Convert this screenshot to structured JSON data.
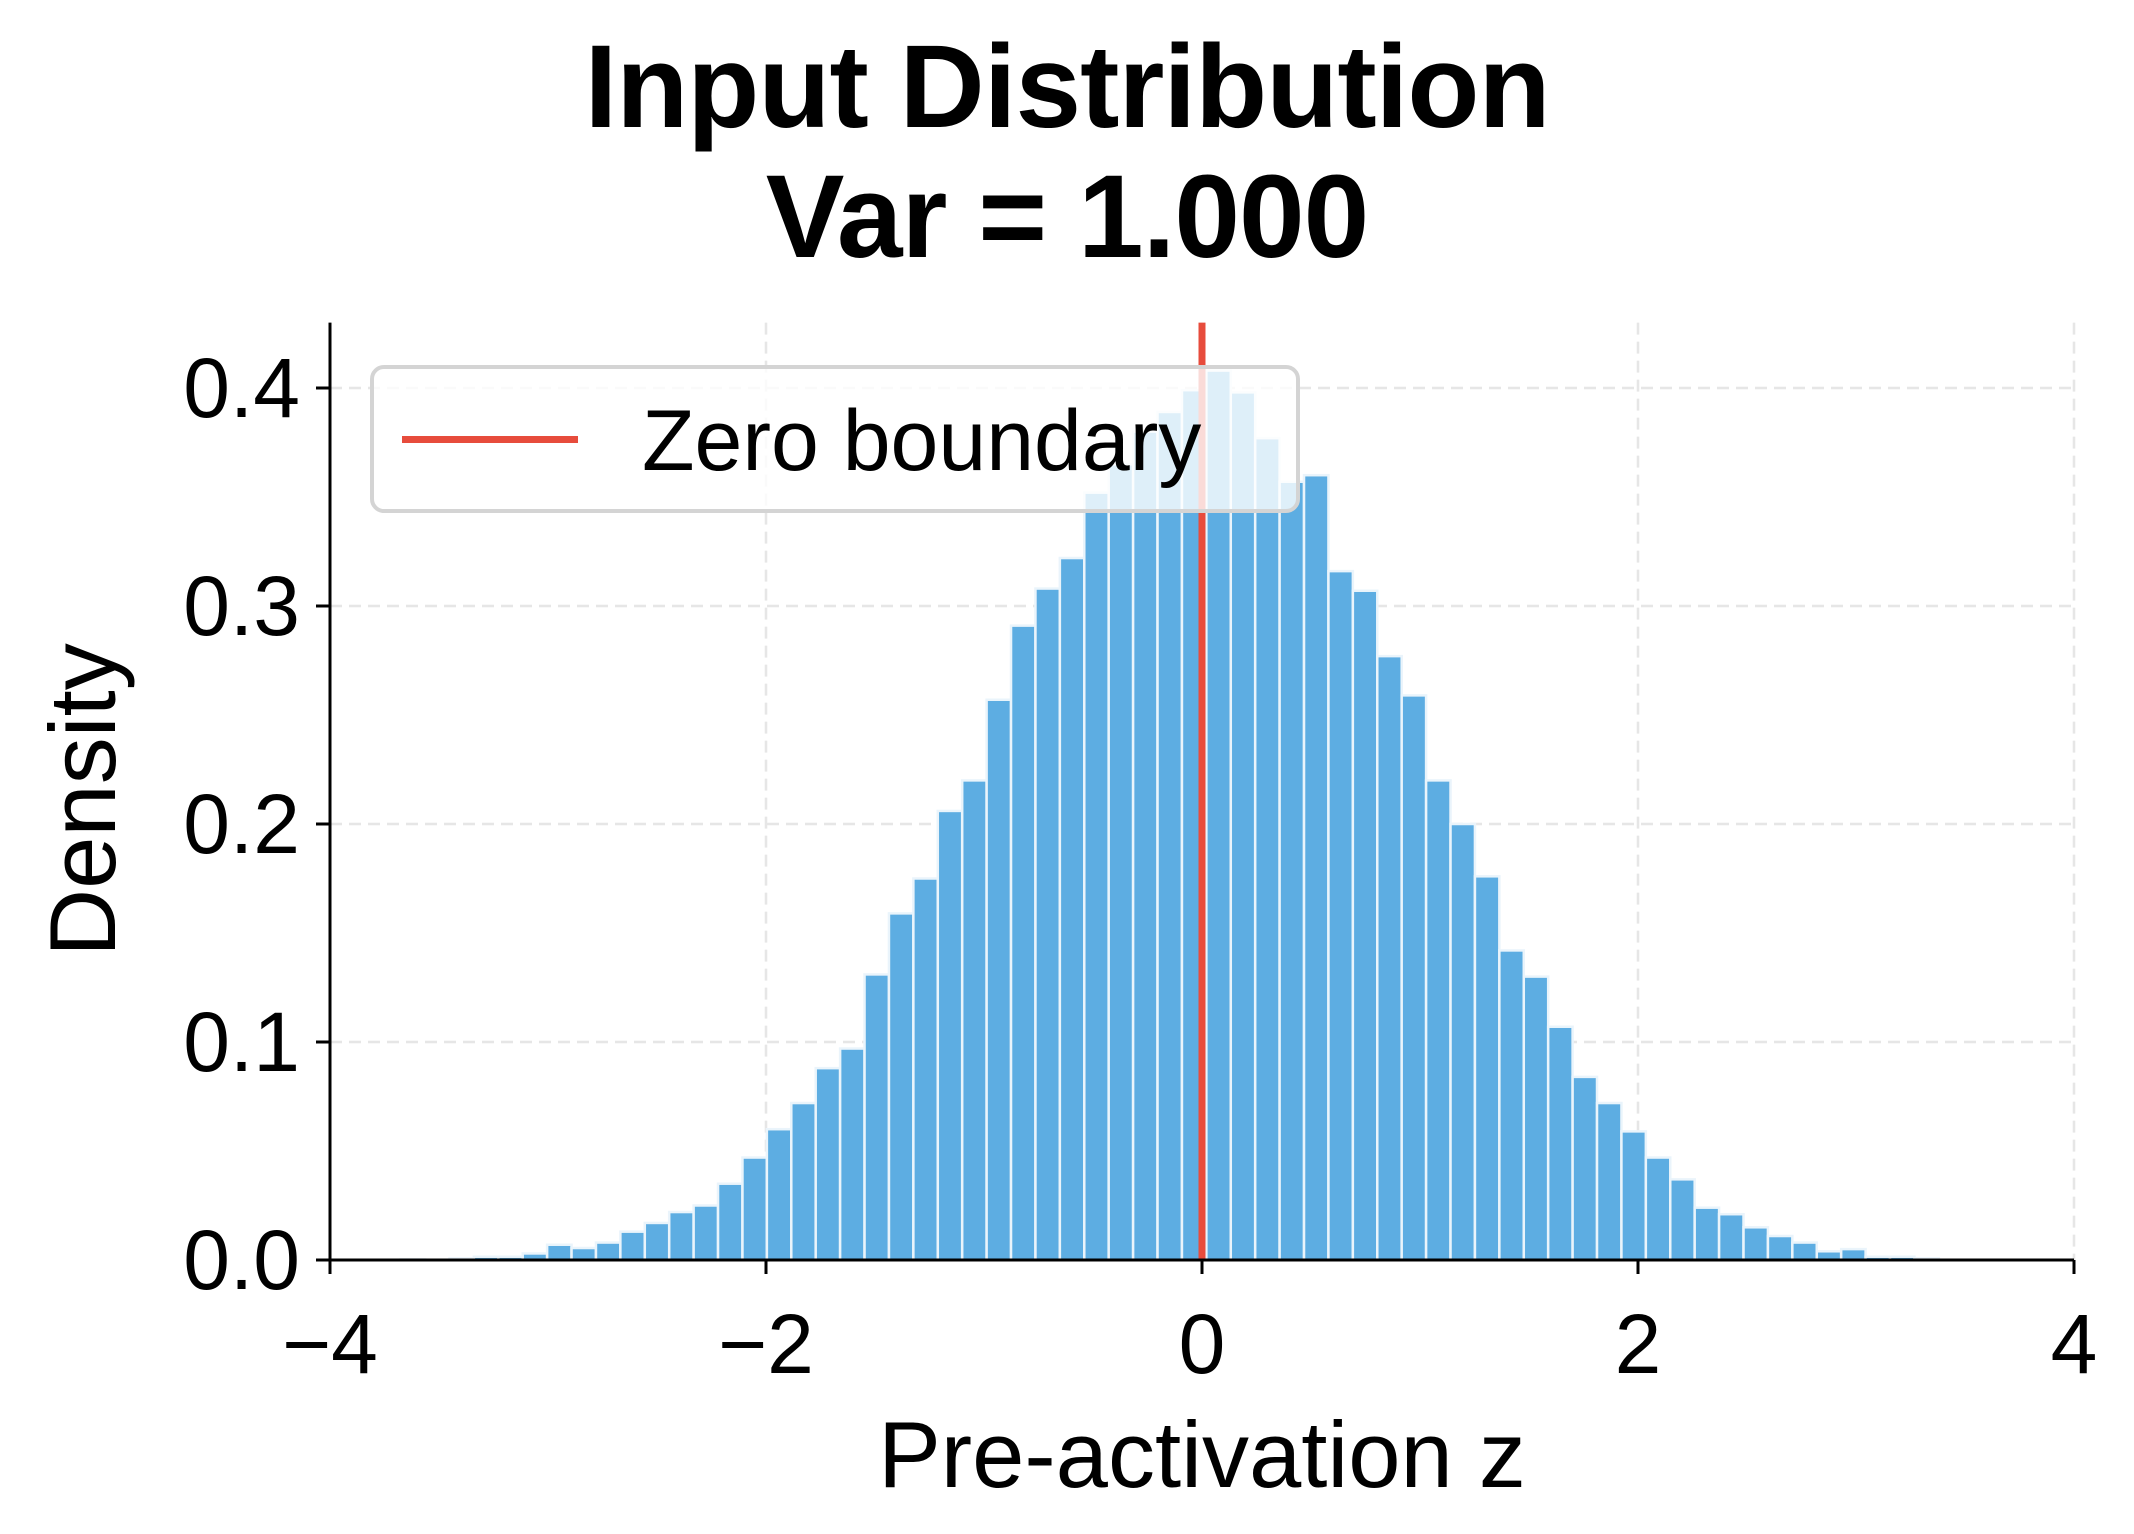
{
  "title": {
    "line1": "Input Distribution",
    "line2": "Var = 1.000"
  },
  "axes": {
    "xlabel": "Pre-activation z",
    "ylabel": "Density",
    "xticks": [
      {
        "value": -4,
        "label": "−4"
      },
      {
        "value": -2,
        "label": "−2"
      },
      {
        "value": 0,
        "label": "0"
      },
      {
        "value": 2,
        "label": "2"
      },
      {
        "value": 4,
        "label": "4"
      }
    ],
    "yticks": [
      {
        "value": 0.0,
        "label": "0.0"
      },
      {
        "value": 0.1,
        "label": "0.1"
      },
      {
        "value": 0.2,
        "label": "0.2"
      },
      {
        "value": 0.3,
        "label": "0.3"
      },
      {
        "value": 0.4,
        "label": "0.4"
      }
    ]
  },
  "legend": {
    "items": [
      {
        "label": "Zero boundary",
        "color": "#E74C3C"
      }
    ]
  },
  "colors": {
    "bar": "#5DADE2",
    "bar_edge": "#EAF4FB",
    "zero_line": "#E74C3C",
    "grid": "#E6E6E6",
    "axis": "#000000"
  },
  "chart_data": {
    "type": "bar",
    "title": "Input Distribution\nVar = 1.000",
    "xlabel": "Pre-activation z",
    "ylabel": "Density",
    "xlim": [
      -4,
      4
    ],
    "ylim": [
      0,
      0.43
    ],
    "grid": true,
    "grid_style": "dashed",
    "legend_position": "upper left",
    "bin_width": 0.112,
    "bin_centers": [
      -3.62,
      -3.508,
      -3.396,
      -3.284,
      -3.172,
      -3.06,
      -2.948,
      -2.836,
      -2.724,
      -2.612,
      -2.5,
      -2.388,
      -2.276,
      -2.164,
      -2.052,
      -1.94,
      -1.828,
      -1.716,
      -1.604,
      -1.492,
      -1.38,
      -1.268,
      -1.156,
      -1.044,
      -0.932,
      -0.82,
      -0.708,
      -0.596,
      -0.484,
      -0.372,
      -0.26,
      -0.148,
      -0.036,
      0.076,
      0.188,
      0.3,
      0.412,
      0.524,
      0.636,
      0.748,
      0.86,
      0.972,
      1.084,
      1.196,
      1.308,
      1.42,
      1.532,
      1.644,
      1.756,
      1.868,
      1.98,
      2.092,
      2.204,
      2.316,
      2.428,
      2.54,
      2.652,
      2.764,
      2.876,
      2.988,
      3.1,
      3.212,
      3.324
    ],
    "values": [
      0.0003,
      0.0,
      0.0007,
      0.0015,
      0.0015,
      0.003,
      0.007,
      0.0055,
      0.008,
      0.013,
      0.017,
      0.022,
      0.025,
      0.035,
      0.047,
      0.06,
      0.072,
      0.088,
      0.097,
      0.131,
      0.159,
      0.175,
      0.206,
      0.22,
      0.257,
      0.291,
      0.308,
      0.322,
      0.352,
      0.365,
      0.38,
      0.389,
      0.399,
      0.408,
      0.398,
      0.377,
      0.357,
      0.36,
      0.316,
      0.307,
      0.277,
      0.259,
      0.22,
      0.2,
      0.176,
      0.142,
      0.13,
      0.107,
      0.084,
      0.072,
      0.059,
      0.047,
      0.037,
      0.024,
      0.021,
      0.015,
      0.011,
      0.008,
      0.004,
      0.005,
      0.0015,
      0.0015,
      0.0007
    ],
    "series": [
      {
        "name": "Histogram",
        "type": "bar",
        "color": "#5DADE2"
      },
      {
        "name": "Zero boundary",
        "type": "vline",
        "x": 0,
        "color": "#E74C3C"
      }
    ]
  }
}
